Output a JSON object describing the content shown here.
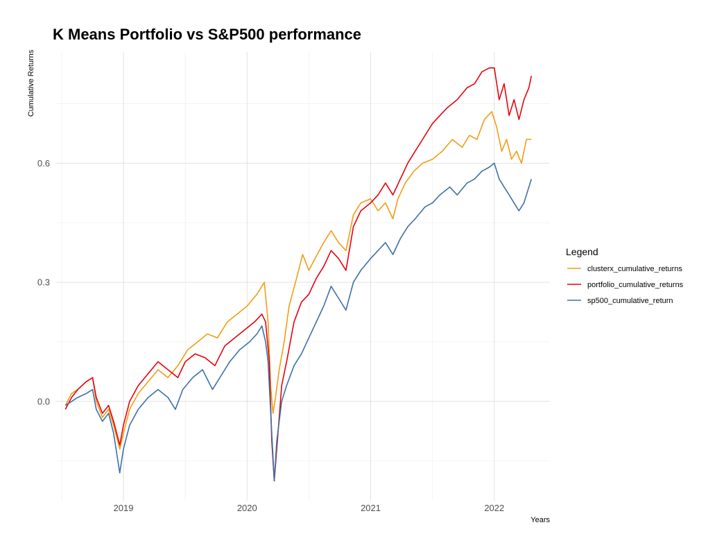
{
  "chart_data": {
    "type": "line",
    "title": "K Means Portfolio vs S&P500 performance",
    "xlabel": "Years",
    "ylabel": "Cumulative Returns",
    "xlim": [
      2018.45,
      2022.45
    ],
    "ylim": [
      -0.25,
      0.88
    ],
    "x_ticks": [
      2019,
      2020,
      2021,
      2022
    ],
    "x_tick_labels": [
      "2019",
      "2020",
      "2021",
      "2022"
    ],
    "y_ticks": [
      0.0,
      0.3,
      0.6
    ],
    "y_tick_labels": [
      "0.0",
      "0.3",
      "0.6"
    ],
    "grid": true,
    "legend": {
      "title": "Legend",
      "position": "right"
    },
    "series": [
      {
        "name": "clusterx_cumulative_returns",
        "color": "#F39C12",
        "points": [
          [
            2018.53,
            -0.01
          ],
          [
            2018.58,
            0.02
          ],
          [
            2018.63,
            0.03
          ],
          [
            2018.7,
            0.05
          ],
          [
            2018.75,
            0.06
          ],
          [
            2018.78,
            0.0
          ],
          [
            2018.83,
            -0.04
          ],
          [
            2018.88,
            -0.02
          ],
          [
            2018.92,
            -0.06
          ],
          [
            2018.97,
            -0.12
          ],
          [
            2019.0,
            -0.08
          ],
          [
            2019.05,
            -0.02
          ],
          [
            2019.12,
            0.02
          ],
          [
            2019.2,
            0.05
          ],
          [
            2019.28,
            0.08
          ],
          [
            2019.36,
            0.06
          ],
          [
            2019.44,
            0.09
          ],
          [
            2019.52,
            0.13
          ],
          [
            2019.6,
            0.15
          ],
          [
            2019.68,
            0.17
          ],
          [
            2019.76,
            0.16
          ],
          [
            2019.84,
            0.2
          ],
          [
            2019.92,
            0.22
          ],
          [
            2020.0,
            0.24
          ],
          [
            2020.08,
            0.27
          ],
          [
            2020.14,
            0.3
          ],
          [
            2020.17,
            0.2
          ],
          [
            2020.19,
            0.04
          ],
          [
            2020.21,
            -0.03
          ],
          [
            2020.23,
            0.01
          ],
          [
            2020.26,
            0.08
          ],
          [
            2020.3,
            0.15
          ],
          [
            2020.34,
            0.24
          ],
          [
            2020.4,
            0.31
          ],
          [
            2020.45,
            0.37
          ],
          [
            2020.5,
            0.33
          ],
          [
            2020.55,
            0.36
          ],
          [
            2020.62,
            0.4
          ],
          [
            2020.68,
            0.43
          ],
          [
            2020.74,
            0.4
          ],
          [
            2020.8,
            0.38
          ],
          [
            2020.86,
            0.47
          ],
          [
            2020.92,
            0.5
          ],
          [
            2021.0,
            0.51
          ],
          [
            2021.06,
            0.48
          ],
          [
            2021.12,
            0.5
          ],
          [
            2021.18,
            0.46
          ],
          [
            2021.22,
            0.51
          ],
          [
            2021.28,
            0.55
          ],
          [
            2021.35,
            0.58
          ],
          [
            2021.42,
            0.6
          ],
          [
            2021.5,
            0.61
          ],
          [
            2021.58,
            0.63
          ],
          [
            2021.66,
            0.66
          ],
          [
            2021.74,
            0.64
          ],
          [
            2021.8,
            0.67
          ],
          [
            2021.86,
            0.66
          ],
          [
            2021.92,
            0.71
          ],
          [
            2021.98,
            0.73
          ],
          [
            2022.02,
            0.69
          ],
          [
            2022.06,
            0.63
          ],
          [
            2022.1,
            0.66
          ],
          [
            2022.14,
            0.61
          ],
          [
            2022.18,
            0.63
          ],
          [
            2022.22,
            0.6
          ],
          [
            2022.26,
            0.66
          ],
          [
            2022.3,
            0.66
          ]
        ]
      },
      {
        "name": "portfolio_cumulative_returns",
        "color": "#E8000B",
        "points": [
          [
            2018.53,
            -0.02
          ],
          [
            2018.58,
            0.01
          ],
          [
            2018.63,
            0.03
          ],
          [
            2018.7,
            0.05
          ],
          [
            2018.75,
            0.06
          ],
          [
            2018.78,
            0.01
          ],
          [
            2018.83,
            -0.03
          ],
          [
            2018.88,
            -0.01
          ],
          [
            2018.92,
            -0.05
          ],
          [
            2018.97,
            -0.11
          ],
          [
            2019.0,
            -0.06
          ],
          [
            2019.05,
            0.0
          ],
          [
            2019.12,
            0.04
          ],
          [
            2019.2,
            0.07
          ],
          [
            2019.28,
            0.1
          ],
          [
            2019.36,
            0.08
          ],
          [
            2019.44,
            0.06
          ],
          [
            2019.5,
            0.1
          ],
          [
            2019.58,
            0.12
          ],
          [
            2019.66,
            0.11
          ],
          [
            2019.74,
            0.09
          ],
          [
            2019.82,
            0.14
          ],
          [
            2019.9,
            0.16
          ],
          [
            2019.98,
            0.18
          ],
          [
            2020.06,
            0.2
          ],
          [
            2020.12,
            0.22
          ],
          [
            2020.15,
            0.2
          ],
          [
            2020.18,
            0.1
          ],
          [
            2020.2,
            -0.1
          ],
          [
            2020.22,
            -0.2
          ],
          [
            2020.24,
            -0.12
          ],
          [
            2020.28,
            0.04
          ],
          [
            2020.32,
            0.1
          ],
          [
            2020.38,
            0.2
          ],
          [
            2020.44,
            0.25
          ],
          [
            2020.5,
            0.27
          ],
          [
            2020.56,
            0.31
          ],
          [
            2020.62,
            0.34
          ],
          [
            2020.68,
            0.38
          ],
          [
            2020.74,
            0.36
          ],
          [
            2020.8,
            0.33
          ],
          [
            2020.86,
            0.44
          ],
          [
            2020.92,
            0.48
          ],
          [
            2021.0,
            0.5
          ],
          [
            2021.06,
            0.52
          ],
          [
            2021.12,
            0.55
          ],
          [
            2021.18,
            0.52
          ],
          [
            2021.24,
            0.56
          ],
          [
            2021.3,
            0.6
          ],
          [
            2021.36,
            0.63
          ],
          [
            2021.42,
            0.66
          ],
          [
            2021.5,
            0.7
          ],
          [
            2021.56,
            0.72
          ],
          [
            2021.62,
            0.74
          ],
          [
            2021.7,
            0.76
          ],
          [
            2021.78,
            0.79
          ],
          [
            2021.84,
            0.8
          ],
          [
            2021.9,
            0.83
          ],
          [
            2021.96,
            0.84
          ],
          [
            2022.0,
            0.84
          ],
          [
            2022.04,
            0.76
          ],
          [
            2022.08,
            0.8
          ],
          [
            2022.12,
            0.72
          ],
          [
            2022.16,
            0.76
          ],
          [
            2022.2,
            0.71
          ],
          [
            2022.24,
            0.76
          ],
          [
            2022.28,
            0.79
          ],
          [
            2022.3,
            0.82
          ]
        ]
      },
      {
        "name": "sp500_cumulative_return",
        "color": "#3D6FA6",
        "points": [
          [
            2018.53,
            -0.01
          ],
          [
            2018.58,
            0.0
          ],
          [
            2018.63,
            0.01
          ],
          [
            2018.7,
            0.02
          ],
          [
            2018.75,
            0.03
          ],
          [
            2018.78,
            -0.02
          ],
          [
            2018.83,
            -0.05
          ],
          [
            2018.88,
            -0.03
          ],
          [
            2018.92,
            -0.08
          ],
          [
            2018.97,
            -0.18
          ],
          [
            2019.0,
            -0.12
          ],
          [
            2019.05,
            -0.06
          ],
          [
            2019.12,
            -0.02
          ],
          [
            2019.2,
            0.01
          ],
          [
            2019.28,
            0.03
          ],
          [
            2019.36,
            0.01
          ],
          [
            2019.42,
            -0.02
          ],
          [
            2019.48,
            0.03
          ],
          [
            2019.56,
            0.06
          ],
          [
            2019.64,
            0.08
          ],
          [
            2019.72,
            0.03
          ],
          [
            2019.78,
            0.06
          ],
          [
            2019.86,
            0.1
          ],
          [
            2019.94,
            0.13
          ],
          [
            2020.02,
            0.15
          ],
          [
            2020.08,
            0.17
          ],
          [
            2020.12,
            0.19
          ],
          [
            2020.15,
            0.15
          ],
          [
            2020.17,
            0.1
          ],
          [
            2020.2,
            -0.08
          ],
          [
            2020.22,
            -0.2
          ],
          [
            2020.24,
            -0.1
          ],
          [
            2020.28,
            0.0
          ],
          [
            2020.32,
            0.04
          ],
          [
            2020.38,
            0.09
          ],
          [
            2020.44,
            0.12
          ],
          [
            2020.5,
            0.16
          ],
          [
            2020.56,
            0.2
          ],
          [
            2020.62,
            0.24
          ],
          [
            2020.68,
            0.29
          ],
          [
            2020.74,
            0.26
          ],
          [
            2020.8,
            0.23
          ],
          [
            2020.86,
            0.3
          ],
          [
            2020.92,
            0.33
          ],
          [
            2021.0,
            0.36
          ],
          [
            2021.06,
            0.38
          ],
          [
            2021.12,
            0.4
          ],
          [
            2021.18,
            0.37
          ],
          [
            2021.24,
            0.41
          ],
          [
            2021.3,
            0.44
          ],
          [
            2021.36,
            0.46
          ],
          [
            2021.44,
            0.49
          ],
          [
            2021.5,
            0.5
          ],
          [
            2021.56,
            0.52
          ],
          [
            2021.64,
            0.54
          ],
          [
            2021.7,
            0.52
          ],
          [
            2021.78,
            0.55
          ],
          [
            2021.84,
            0.56
          ],
          [
            2021.9,
            0.58
          ],
          [
            2021.96,
            0.59
          ],
          [
            2022.0,
            0.6
          ],
          [
            2022.04,
            0.56
          ],
          [
            2022.08,
            0.54
          ],
          [
            2022.12,
            0.52
          ],
          [
            2022.16,
            0.5
          ],
          [
            2022.2,
            0.48
          ],
          [
            2022.24,
            0.5
          ],
          [
            2022.28,
            0.54
          ],
          [
            2022.3,
            0.56
          ]
        ]
      }
    ]
  }
}
